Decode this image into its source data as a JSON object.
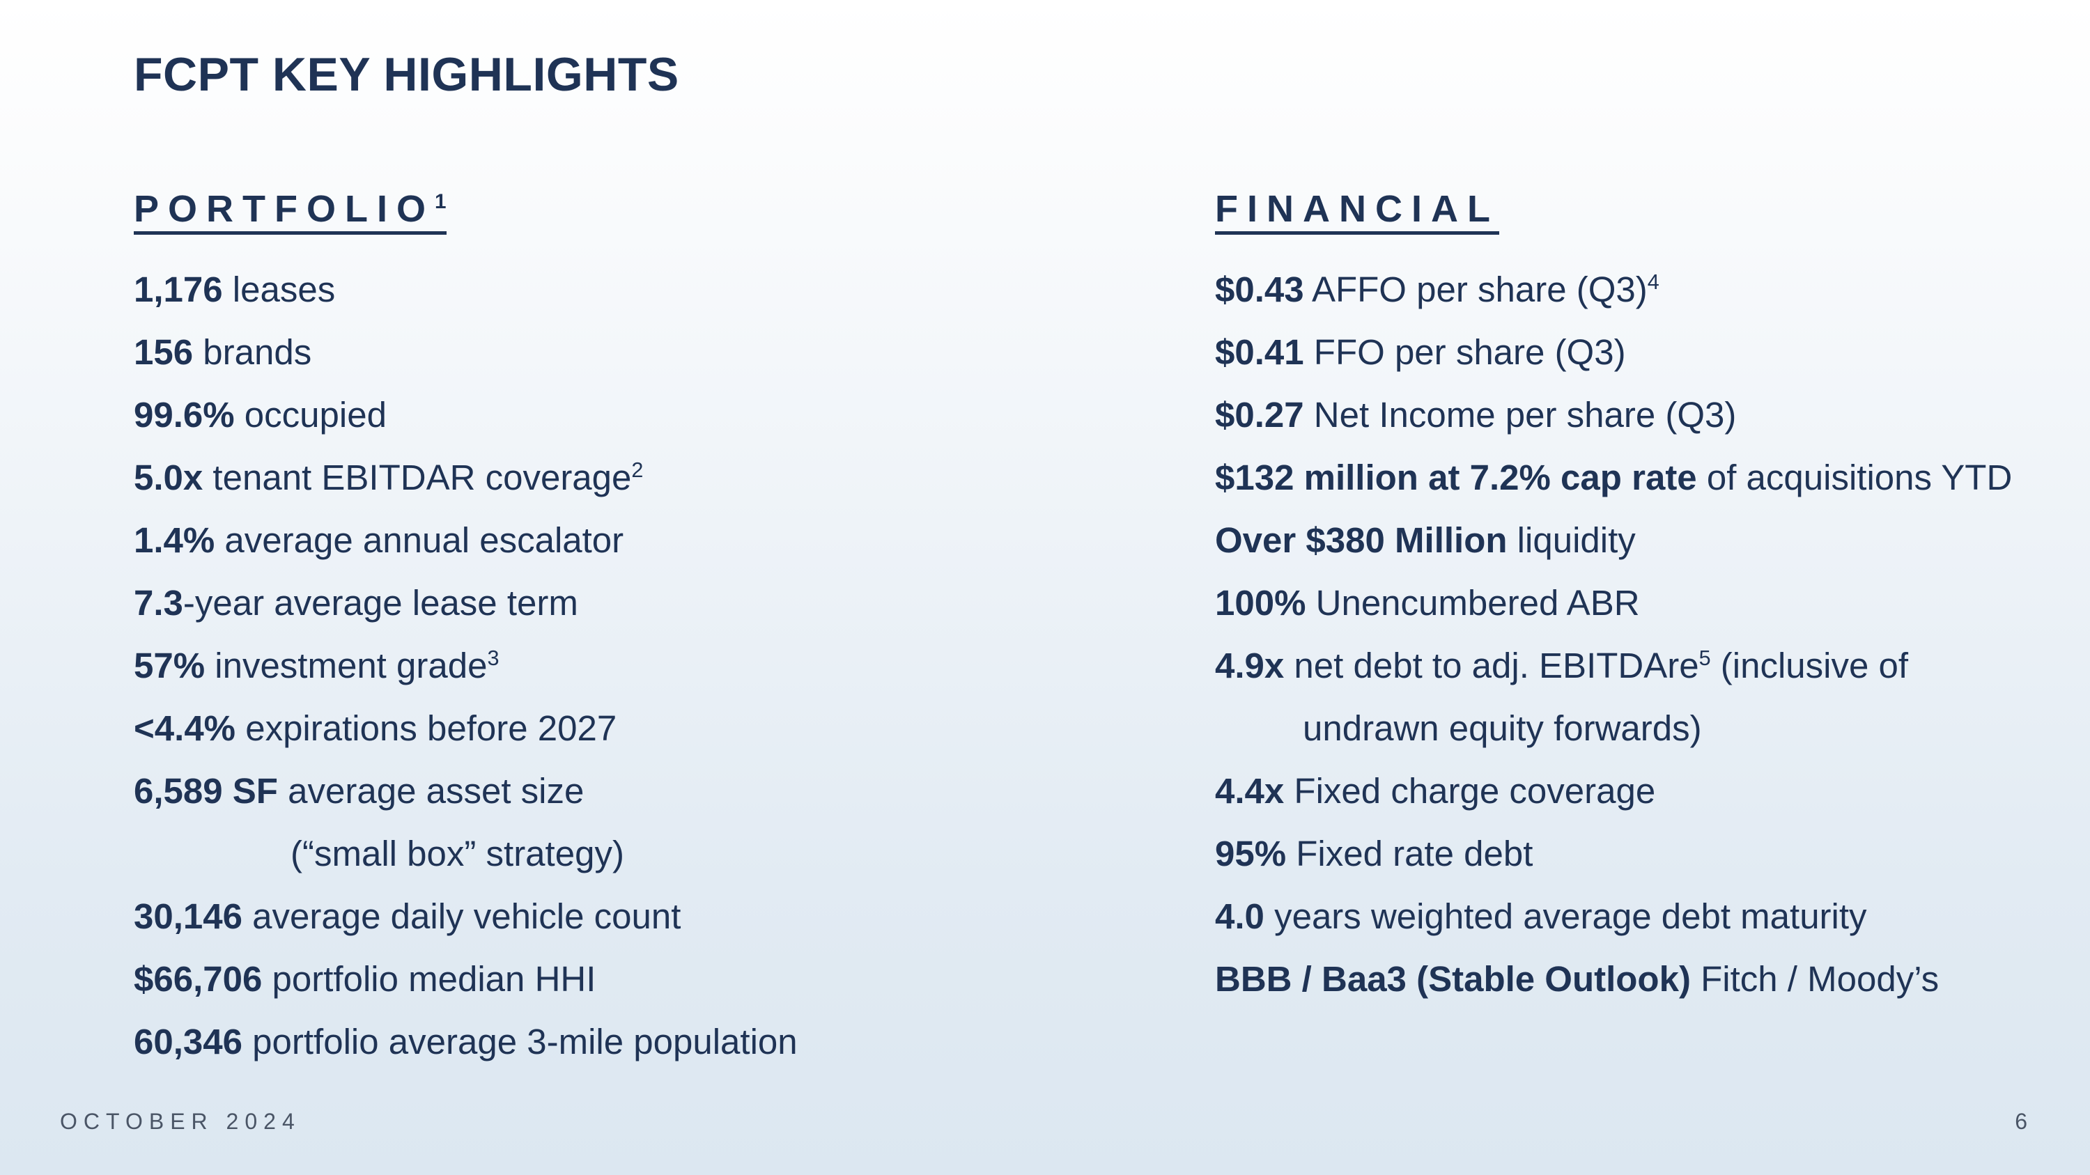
{
  "title": "FCPT KEY HIGHLIGHTS",
  "portfolio": {
    "heading": "PORTFOLIO",
    "heading_sup": "1",
    "items": [
      {
        "bold": "1,176",
        "text": " leases",
        "sup": ""
      },
      {
        "bold": "156",
        "text": " brands",
        "sup": ""
      },
      {
        "bold": "99.6%",
        "text": " occupied",
        "sup": ""
      },
      {
        "bold": "5.0x",
        "text": " tenant EBITDAR coverage",
        "sup": "2"
      },
      {
        "bold": "1.4%",
        "text": " average annual escalator",
        "sup": ""
      },
      {
        "bold": "7.3",
        "text": "-year average lease term",
        "sup": ""
      },
      {
        "bold": "57%",
        "text": " investment grade",
        "sup": "3"
      },
      {
        "bold": "<4.4%",
        "text": " expirations before 2027",
        "sup": ""
      },
      {
        "bold": "6,589 SF",
        "text": " average asset size",
        "sup": ""
      },
      {
        "bold": "",
        "text": "(“small box” strategy)",
        "sup": ""
      },
      {
        "bold": "30,146",
        "text": " average daily vehicle count",
        "sup": ""
      },
      {
        "bold": "$66,706",
        "text": " portfolio median HHI",
        "sup": ""
      },
      {
        "bold": "60,346",
        "text": " portfolio average 3-mile population",
        "sup": ""
      }
    ]
  },
  "financial": {
    "heading": "FINANCIAL",
    "items": [
      {
        "bold": "$0.43",
        "text": " AFFO per share (Q3)",
        "sup": "4",
        "after": ""
      },
      {
        "bold": "$0.41",
        "text": " FFO per share (Q3)",
        "sup": "",
        "after": ""
      },
      {
        "bold": "$0.27",
        "text": " Net Income per share (Q3)",
        "sup": "",
        "after": ""
      },
      {
        "bold": "$132 million at 7.2% cap rate",
        "text": " of acquisitions YTD",
        "sup": "",
        "after": ""
      },
      {
        "bold": "Over $380 Million",
        "text": " liquidity",
        "sup": "",
        "after": ""
      },
      {
        "bold": "100%",
        "text": " Unencumbered ABR",
        "sup": "",
        "after": ""
      },
      {
        "bold": "4.9x",
        "text": " net debt to adj. EBITDAre",
        "sup": "5",
        "after": " (inclusive of"
      },
      {
        "bold": "",
        "text": "undrawn equity forwards)",
        "sup": "",
        "after": ""
      },
      {
        "bold": "4.4x",
        "text": " Fixed charge coverage",
        "sup": "",
        "after": ""
      },
      {
        "bold": "95%",
        "text": " Fixed rate debt",
        "sup": "",
        "after": ""
      },
      {
        "bold": "4.0",
        "text": " years weighted average debt maturity",
        "sup": "",
        "after": ""
      },
      {
        "bold": "BBB / Baa3 (Stable Outlook)",
        "text": " Fitch / Moody’s",
        "sup": "",
        "after": ""
      }
    ]
  },
  "footer": {
    "date": "OCTOBER 2024",
    "page": "6"
  }
}
